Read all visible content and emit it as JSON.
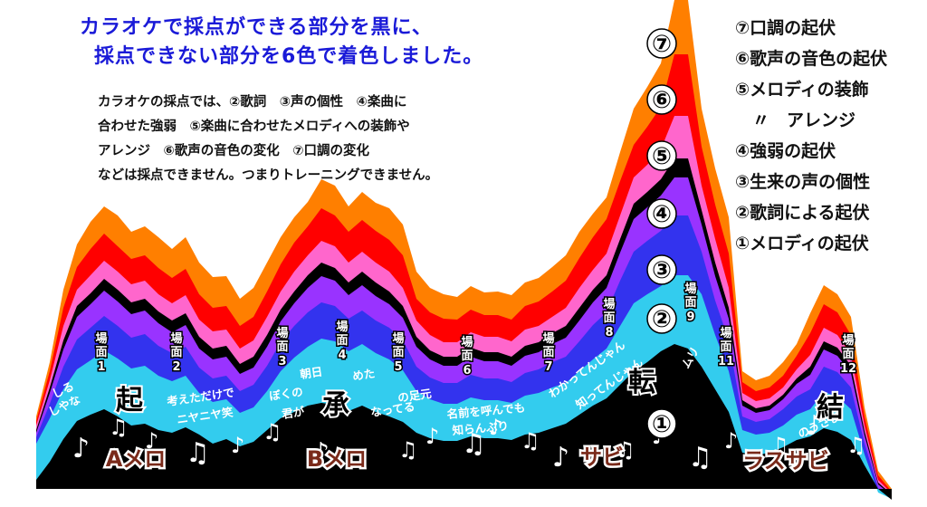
{
  "title": {
    "line1": "カラオケで採点ができる部分を黒に、",
    "line2": "採点できない部分を6色で着色しました。"
  },
  "description": [
    "カラオケの採点では、②歌詞　③声の個性　④楽曲に",
    "合わせた強弱　⑤楽曲に合わせたメロディへの装飾や",
    "アレンジ　⑥歌声の音色の変化　⑦口調の変化",
    "などは採点できません。つまりトレーニングできません。"
  ],
  "legend": [
    "⑦口調の起伏",
    "⑥歌声の音色の起伏",
    "⑤メロディの装飾",
    "　〃　アレンジ",
    "④強弱の起伏",
    "③生来の声の個性",
    "②歌詞による起伏",
    "①メロディの起伏"
  ],
  "layer_markers": [
    "⑦",
    "⑥",
    "⑤",
    "④",
    "③",
    "②",
    "①"
  ],
  "layer_colors": [
    "#ff7f00",
    "#ff0000",
    "#ff66cc",
    "#000000",
    "#9933ff",
    "#3333ee",
    "#33ccee",
    "#000000"
  ],
  "scenes": [
    {
      "word": "場面",
      "num": "1"
    },
    {
      "word": "場面",
      "num": "2"
    },
    {
      "word": "場面",
      "num": "3"
    },
    {
      "word": "場面",
      "num": "4"
    },
    {
      "word": "場面",
      "num": "5"
    },
    {
      "word": "場面",
      "num": "6"
    },
    {
      "word": "場面",
      "num": "7"
    },
    {
      "word": "場面",
      "num": "8"
    },
    {
      "word": "場面",
      "num": "9"
    },
    {
      "word": "場面",
      "num": "11"
    },
    {
      "word": "場面",
      "num": "12"
    }
  ],
  "story": [
    "起",
    "承",
    "転",
    "結"
  ],
  "sections": [
    "Aメロ",
    "Bメロ",
    "サビ",
    "ラスサビ"
  ],
  "lyrics": [
    "考えただけで",
    "ニヤニヤ笑",
    "朝日",
    "めた",
    "ぼくの",
    "の足元",
    "君が",
    "なってる",
    "名前を呼んでも",
    "知らんぷり",
    "わかってんじゃん",
    "知ってんじゃん",
    "ムリ",
    "のうさま",
    "しる",
    "しやな"
  ]
}
